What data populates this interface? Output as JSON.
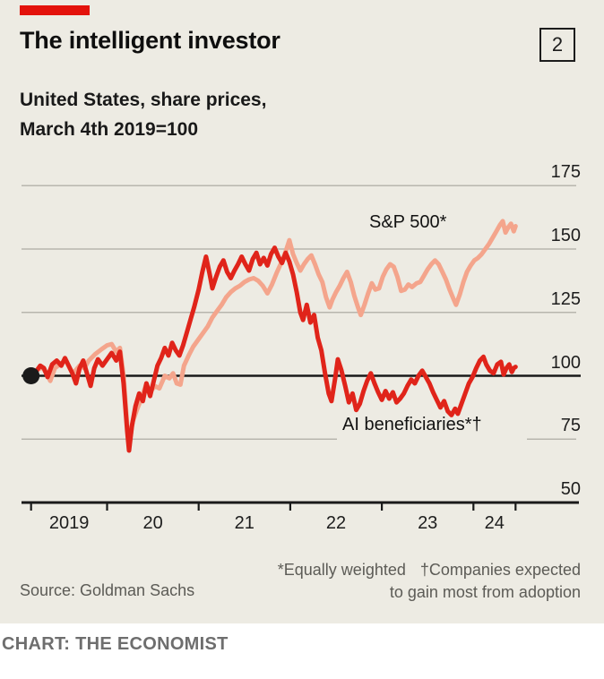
{
  "header": {
    "title": "The intelligent investor",
    "index_tag": "2",
    "subtitle_line1": "United States, share prices,",
    "subtitle_line2": "March 4th 2019=100"
  },
  "colors": {
    "accent_red": "#e3120b",
    "card_background": "#edebe3",
    "line_sp500": "#f4a58c",
    "line_ai": "#e0241a",
    "gridline": "#b8b6ae",
    "axis_black": "#1a1a1a",
    "footnote_gray": "#5c5b56",
    "credit_gray": "#6e6e6e"
  },
  "chart_data": {
    "type": "line",
    "title": "The intelligent investor",
    "subtitle": "United States, share prices, March 4th 2019=100",
    "grid": "horizontal gridlines on, black baseline at 100, bottom axis at 50",
    "legend": "inline series labels",
    "y_axis": {
      "tick_values": [
        175,
        150,
        125,
        100,
        75,
        50
      ],
      "range": [
        50,
        175
      ],
      "baseline_value": 100
    },
    "x_axis": {
      "labels": [
        "2019",
        "20",
        "21",
        "22",
        "23",
        "24"
      ],
      "tick_positions_years": [
        2019.17,
        2020,
        2021,
        2022,
        2023,
        2024,
        2024.46
      ],
      "unit": "year"
    },
    "start_marker": {
      "x": 2019.17,
      "y": 100
    },
    "series": [
      {
        "name": "S&P 500*",
        "color": "#f4a58c",
        "points": [
          [
            2019.17,
            100
          ],
          [
            2019.23,
            102
          ],
          [
            2019.29,
            103.5
          ],
          [
            2019.34,
            101
          ],
          [
            2019.38,
            98
          ],
          [
            2019.43,
            103
          ],
          [
            2019.5,
            105
          ],
          [
            2019.55,
            106
          ],
          [
            2019.6,
            102.5
          ],
          [
            2019.63,
            101
          ],
          [
            2019.7,
            104
          ],
          [
            2019.75,
            103
          ],
          [
            2019.8,
            106
          ],
          [
            2019.87,
            108.5
          ],
          [
            2019.94,
            110.5
          ],
          [
            2020.0,
            112
          ],
          [
            2020.05,
            112.5
          ],
          [
            2020.1,
            109.5
          ],
          [
            2020.14,
            111
          ],
          [
            2020.18,
            100
          ],
          [
            2020.22,
            80
          ],
          [
            2020.24,
            72
          ],
          [
            2020.28,
            82
          ],
          [
            2020.33,
            87
          ],
          [
            2020.38,
            91.5
          ],
          [
            2020.43,
            97
          ],
          [
            2020.47,
            93.5
          ],
          [
            2020.52,
            96
          ],
          [
            2020.57,
            95
          ],
          [
            2020.63,
            100
          ],
          [
            2020.68,
            99
          ],
          [
            2020.72,
            101
          ],
          [
            2020.76,
            97
          ],
          [
            2020.8,
            96.5
          ],
          [
            2020.84,
            104
          ],
          [
            2020.89,
            108
          ],
          [
            2020.94,
            111.5
          ],
          [
            2021.0,
            114.5
          ],
          [
            2021.05,
            117
          ],
          [
            2021.1,
            119.5
          ],
          [
            2021.15,
            123
          ],
          [
            2021.2,
            125.5
          ],
          [
            2021.25,
            128
          ],
          [
            2021.3,
            131
          ],
          [
            2021.35,
            133
          ],
          [
            2021.4,
            134.5
          ],
          [
            2021.45,
            135.5
          ],
          [
            2021.5,
            137
          ],
          [
            2021.55,
            138
          ],
          [
            2021.6,
            138.5
          ],
          [
            2021.65,
            137.5
          ],
          [
            2021.7,
            135.5
          ],
          [
            2021.75,
            132.5
          ],
          [
            2021.8,
            136
          ],
          [
            2021.85,
            140.5
          ],
          [
            2021.9,
            144.5
          ],
          [
            2021.95,
            149
          ],
          [
            2021.99,
            153.5
          ],
          [
            2022.03,
            148
          ],
          [
            2022.07,
            144.5
          ],
          [
            2022.11,
            141.5
          ],
          [
            2022.15,
            144
          ],
          [
            2022.19,
            146
          ],
          [
            2022.23,
            147.5
          ],
          [
            2022.27,
            144
          ],
          [
            2022.31,
            140
          ],
          [
            2022.35,
            137
          ],
          [
            2022.39,
            131
          ],
          [
            2022.43,
            127
          ],
          [
            2022.46,
            130
          ],
          [
            2022.5,
            133
          ],
          [
            2022.54,
            135.5
          ],
          [
            2022.58,
            138.5
          ],
          [
            2022.62,
            141
          ],
          [
            2022.66,
            137
          ],
          [
            2022.7,
            131.5
          ],
          [
            2022.74,
            127
          ],
          [
            2022.77,
            124
          ],
          [
            2022.81,
            128
          ],
          [
            2022.85,
            132.5
          ],
          [
            2022.89,
            136.5
          ],
          [
            2022.93,
            134
          ],
          [
            2022.97,
            134.5
          ],
          [
            2023.01,
            139
          ],
          [
            2023.05,
            142
          ],
          [
            2023.09,
            144
          ],
          [
            2023.13,
            143
          ],
          [
            2023.17,
            139
          ],
          [
            2023.21,
            133.5
          ],
          [
            2023.25,
            134
          ],
          [
            2023.29,
            136
          ],
          [
            2023.33,
            135
          ],
          [
            2023.38,
            136.5
          ],
          [
            2023.42,
            137
          ],
          [
            2023.46,
            139.5
          ],
          [
            2023.5,
            142
          ],
          [
            2023.54,
            144
          ],
          [
            2023.58,
            145.5
          ],
          [
            2023.62,
            144
          ],
          [
            2023.66,
            141
          ],
          [
            2023.7,
            138
          ],
          [
            2023.74,
            134
          ],
          [
            2023.78,
            130.5
          ],
          [
            2023.81,
            128
          ],
          [
            2023.85,
            132
          ],
          [
            2023.89,
            137
          ],
          [
            2023.93,
            141
          ],
          [
            2023.97,
            143.5
          ],
          [
            2024.01,
            145.5
          ],
          [
            2024.05,
            146.5
          ],
          [
            2024.09,
            148
          ],
          [
            2024.13,
            150
          ],
          [
            2024.17,
            152
          ],
          [
            2024.21,
            154.5
          ],
          [
            2024.25,
            157
          ],
          [
            2024.29,
            159.5
          ],
          [
            2024.32,
            161
          ],
          [
            2024.35,
            156.5
          ],
          [
            2024.38,
            158.5
          ],
          [
            2024.41,
            160
          ],
          [
            2024.44,
            157
          ],
          [
            2024.46,
            159
          ]
        ]
      },
      {
        "name": "AI beneficiaries*†",
        "color": "#e0241a",
        "points": [
          [
            2019.17,
            100
          ],
          [
            2019.22,
            101.5
          ],
          [
            2019.27,
            104
          ],
          [
            2019.31,
            103
          ],
          [
            2019.35,
            99.5
          ],
          [
            2019.4,
            104.5
          ],
          [
            2019.45,
            106
          ],
          [
            2019.5,
            104
          ],
          [
            2019.54,
            107
          ],
          [
            2019.58,
            104
          ],
          [
            2019.62,
            101
          ],
          [
            2019.66,
            97
          ],
          [
            2019.7,
            103
          ],
          [
            2019.74,
            106
          ],
          [
            2019.78,
            101
          ],
          [
            2019.82,
            96
          ],
          [
            2019.86,
            103
          ],
          [
            2019.9,
            106.5
          ],
          [
            2019.95,
            104
          ],
          [
            2020.0,
            106.5
          ],
          [
            2020.05,
            109
          ],
          [
            2020.1,
            106
          ],
          [
            2020.14,
            109.5
          ],
          [
            2020.18,
            97
          ],
          [
            2020.22,
            78
          ],
          [
            2020.24,
            70.5
          ],
          [
            2020.27,
            80
          ],
          [
            2020.31,
            88
          ],
          [
            2020.35,
            93
          ],
          [
            2020.39,
            90
          ],
          [
            2020.43,
            97
          ],
          [
            2020.47,
            92
          ],
          [
            2020.51,
            98
          ],
          [
            2020.55,
            104
          ],
          [
            2020.59,
            107
          ],
          [
            2020.63,
            111
          ],
          [
            2020.67,
            108
          ],
          [
            2020.71,
            113
          ],
          [
            2020.75,
            110
          ],
          [
            2020.79,
            108
          ],
          [
            2020.83,
            112
          ],
          [
            2020.87,
            117
          ],
          [
            2020.91,
            122
          ],
          [
            2020.95,
            127
          ],
          [
            2021.0,
            134
          ],
          [
            2021.04,
            141
          ],
          [
            2021.08,
            147
          ],
          [
            2021.12,
            140
          ],
          [
            2021.15,
            134.5
          ],
          [
            2021.19,
            139
          ],
          [
            2021.23,
            143
          ],
          [
            2021.27,
            145.5
          ],
          [
            2021.31,
            141
          ],
          [
            2021.35,
            138.5
          ],
          [
            2021.39,
            141.5
          ],
          [
            2021.43,
            144
          ],
          [
            2021.47,
            147
          ],
          [
            2021.51,
            144
          ],
          [
            2021.55,
            141.5
          ],
          [
            2021.59,
            146
          ],
          [
            2021.63,
            148.5
          ],
          [
            2021.67,
            144
          ],
          [
            2021.71,
            146.5
          ],
          [
            2021.75,
            143.5
          ],
          [
            2021.79,
            148
          ],
          [
            2021.83,
            150.5
          ],
          [
            2021.87,
            147
          ],
          [
            2021.91,
            144.5
          ],
          [
            2021.95,
            148.5
          ],
          [
            2021.99,
            145
          ],
          [
            2022.03,
            140
          ],
          [
            2022.07,
            133
          ],
          [
            2022.11,
            125
          ],
          [
            2022.14,
            122
          ],
          [
            2022.18,
            128
          ],
          [
            2022.22,
            121
          ],
          [
            2022.26,
            124
          ],
          [
            2022.3,
            115
          ],
          [
            2022.34,
            110
          ],
          [
            2022.38,
            101
          ],
          [
            2022.42,
            93
          ],
          [
            2022.45,
            90
          ],
          [
            2022.49,
            99
          ],
          [
            2022.52,
            106.5
          ],
          [
            2022.56,
            102
          ],
          [
            2022.6,
            96
          ],
          [
            2022.64,
            89.5
          ],
          [
            2022.68,
            93
          ],
          [
            2022.72,
            86.5
          ],
          [
            2022.76,
            89
          ],
          [
            2022.8,
            94
          ],
          [
            2022.84,
            98
          ],
          [
            2022.88,
            101
          ],
          [
            2022.92,
            97
          ],
          [
            2022.96,
            93.5
          ],
          [
            2023.0,
            90.5
          ],
          [
            2023.04,
            94
          ],
          [
            2023.08,
            91
          ],
          [
            2023.12,
            93.5
          ],
          [
            2023.16,
            89.5
          ],
          [
            2023.2,
            91
          ],
          [
            2023.24,
            93
          ],
          [
            2023.28,
            96
          ],
          [
            2023.32,
            98.5
          ],
          [
            2023.36,
            97
          ],
          [
            2023.4,
            100
          ],
          [
            2023.44,
            102
          ],
          [
            2023.48,
            99.5
          ],
          [
            2023.52,
            97
          ],
          [
            2023.56,
            93.5
          ],
          [
            2023.6,
            90.5
          ],
          [
            2023.64,
            87.5
          ],
          [
            2023.68,
            90
          ],
          [
            2023.72,
            86
          ],
          [
            2023.76,
            84.5
          ],
          [
            2023.8,
            87
          ],
          [
            2023.83,
            85
          ],
          [
            2023.87,
            89
          ],
          [
            2023.91,
            93
          ],
          [
            2023.95,
            97
          ],
          [
            2023.99,
            99.5
          ],
          [
            2024.03,
            103
          ],
          [
            2024.07,
            106
          ],
          [
            2024.11,
            107.5
          ],
          [
            2024.14,
            104.5
          ],
          [
            2024.18,
            102
          ],
          [
            2024.22,
            101
          ],
          [
            2024.26,
            104.5
          ],
          [
            2024.3,
            105.5
          ],
          [
            2024.33,
            100.5
          ],
          [
            2024.36,
            103
          ],
          [
            2024.39,
            104.5
          ],
          [
            2024.42,
            101.5
          ],
          [
            2024.44,
            103
          ],
          [
            2024.46,
            103.5
          ]
        ]
      }
    ]
  },
  "footnotes": {
    "equally_weighted": "*Equally weighted",
    "companies_expected": "†Companies expected",
    "companies_expected_cont": "to gain most from adoption",
    "source": "Source: Goldman Sachs"
  },
  "credit": "CHART: THE ECONOMIST"
}
